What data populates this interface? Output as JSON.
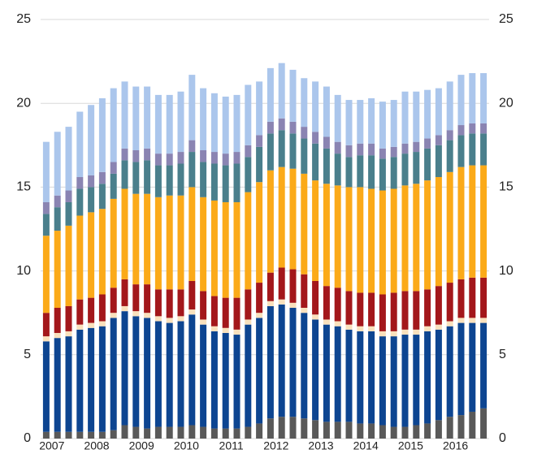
{
  "chart_data": {
    "type": "stacked_bar",
    "categories": [
      null,
      "2007",
      null,
      null,
      null,
      "2008",
      null,
      null,
      null,
      "2009",
      null,
      null,
      null,
      "2010",
      null,
      null,
      null,
      "2011",
      null,
      null,
      null,
      "2012",
      null,
      null,
      null,
      "2013",
      null,
      null,
      null,
      "2014",
      null,
      null,
      null,
      "2015",
      null,
      null,
      null,
      "2016",
      null,
      null
    ],
    "series": [
      {
        "color": "#595959",
        "values": [
          0.4,
          0.4,
          0.4,
          0.4,
          0.4,
          0.4,
          0.5,
          0.8,
          0.7,
          0.6,
          0.7,
          0.7,
          0.7,
          0.8,
          0.7,
          0.6,
          0.6,
          0.6,
          0.7,
          0.9,
          1.2,
          1.3,
          1.3,
          1.2,
          1.1,
          1.0,
          1.0,
          1.0,
          0.9,
          0.9,
          0.8,
          0.7,
          0.7,
          0.8,
          0.9,
          1.1,
          1.3,
          1.4,
          1.6,
          1.8
        ]
      },
      {
        "color": "#0d4591",
        "values": [
          5.4,
          5.6,
          5.7,
          6.1,
          6.2,
          6.3,
          6.7,
          6.8,
          6.6,
          6.6,
          6.3,
          6.2,
          6.3,
          6.6,
          6.1,
          5.8,
          5.7,
          5.6,
          6.1,
          6.3,
          6.7,
          6.7,
          6.5,
          6.3,
          6.0,
          5.8,
          5.7,
          5.5,
          5.5,
          5.5,
          5.3,
          5.4,
          5.5,
          5.4,
          5.5,
          5.4,
          5.4,
          5.5,
          5.3,
          5.1
        ]
      },
      {
        "color": "#f9e1bd",
        "values": [
          0.3,
          0.3,
          0.3,
          0.3,
          0.3,
          0.3,
          0.3,
          0.3,
          0.3,
          0.3,
          0.3,
          0.3,
          0.3,
          0.3,
          0.3,
          0.3,
          0.3,
          0.3,
          0.3,
          0.3,
          0.3,
          0.3,
          0.3,
          0.3,
          0.3,
          0.3,
          0.3,
          0.3,
          0.3,
          0.3,
          0.3,
          0.3,
          0.3,
          0.3,
          0.3,
          0.3,
          0.3,
          0.3,
          0.3,
          0.3
        ]
      },
      {
        "color": "#a3171b",
        "values": [
          1.4,
          1.5,
          1.5,
          1.5,
          1.5,
          1.6,
          1.5,
          1.6,
          1.6,
          1.7,
          1.6,
          1.7,
          1.6,
          1.7,
          1.7,
          1.8,
          1.8,
          1.9,
          1.8,
          1.8,
          1.7,
          1.9,
          2.0,
          2.0,
          2.0,
          2.0,
          2.0,
          2.0,
          2.0,
          2.0,
          2.2,
          2.3,
          2.3,
          2.3,
          2.2,
          2.3,
          2.3,
          2.3,
          2.4,
          2.4
        ]
      },
      {
        "color": "#fbaa19",
        "values": [
          4.6,
          4.6,
          4.8,
          5.0,
          5.1,
          5.1,
          5.3,
          5.4,
          5.4,
          5.4,
          5.5,
          5.6,
          5.6,
          5.6,
          5.6,
          5.7,
          5.7,
          5.7,
          5.8,
          6.0,
          6.1,
          6.0,
          6.0,
          6.0,
          6.0,
          6.1,
          6.1,
          6.2,
          6.3,
          6.2,
          6.2,
          6.2,
          6.3,
          6.4,
          6.5,
          6.5,
          6.6,
          6.7,
          6.7,
          6.7
        ]
      },
      {
        "color": "#4a7f8c",
        "values": [
          1.3,
          1.4,
          1.4,
          1.6,
          1.5,
          1.5,
          1.5,
          1.7,
          1.9,
          2.0,
          1.9,
          1.8,
          1.9,
          2.1,
          2.1,
          2.2,
          2.2,
          2.3,
          2.1,
          2.1,
          2.2,
          2.2,
          2.1,
          2.1,
          2.2,
          2.1,
          1.9,
          1.8,
          1.9,
          2.0,
          1.9,
          1.9,
          1.9,
          1.9,
          1.9,
          1.9,
          1.9,
          1.9,
          1.9,
          1.9
        ]
      },
      {
        "color": "#8a84b2",
        "values": [
          0.7,
          0.7,
          0.7,
          0.7,
          0.7,
          0.7,
          0.7,
          0.7,
          0.7,
          0.7,
          0.7,
          0.7,
          0.7,
          0.7,
          0.7,
          0.7,
          0.7,
          0.7,
          0.7,
          0.7,
          0.7,
          0.7,
          0.7,
          0.7,
          0.7,
          0.7,
          0.7,
          0.7,
          0.7,
          0.7,
          0.6,
          0.6,
          0.6,
          0.6,
          0.6,
          0.6,
          0.6,
          0.6,
          0.6,
          0.6
        ]
      },
      {
        "color": "#abc6ec",
        "values": [
          3.6,
          3.8,
          3.8,
          3.9,
          4.2,
          4.4,
          4.4,
          4.0,
          3.8,
          3.7,
          3.5,
          3.5,
          3.6,
          3.9,
          3.7,
          3.5,
          3.4,
          3.4,
          3.6,
          3.2,
          3.2,
          3.3,
          3.1,
          2.9,
          3.0,
          3.0,
          2.8,
          2.7,
          2.6,
          2.7,
          2.8,
          2.8,
          3.1,
          3.0,
          2.9,
          2.8,
          2.9,
          3.0,
          3.0,
          3.0
        ]
      }
    ],
    "ylim": [
      0,
      25
    ],
    "yticks": [
      0,
      5,
      10,
      15,
      20,
      25
    ],
    "y2lim": [
      0,
      25
    ],
    "y2ticks": [
      0,
      5,
      10,
      15,
      20,
      25
    ],
    "grid": true,
    "grid_color": "#d9d9d9"
  }
}
